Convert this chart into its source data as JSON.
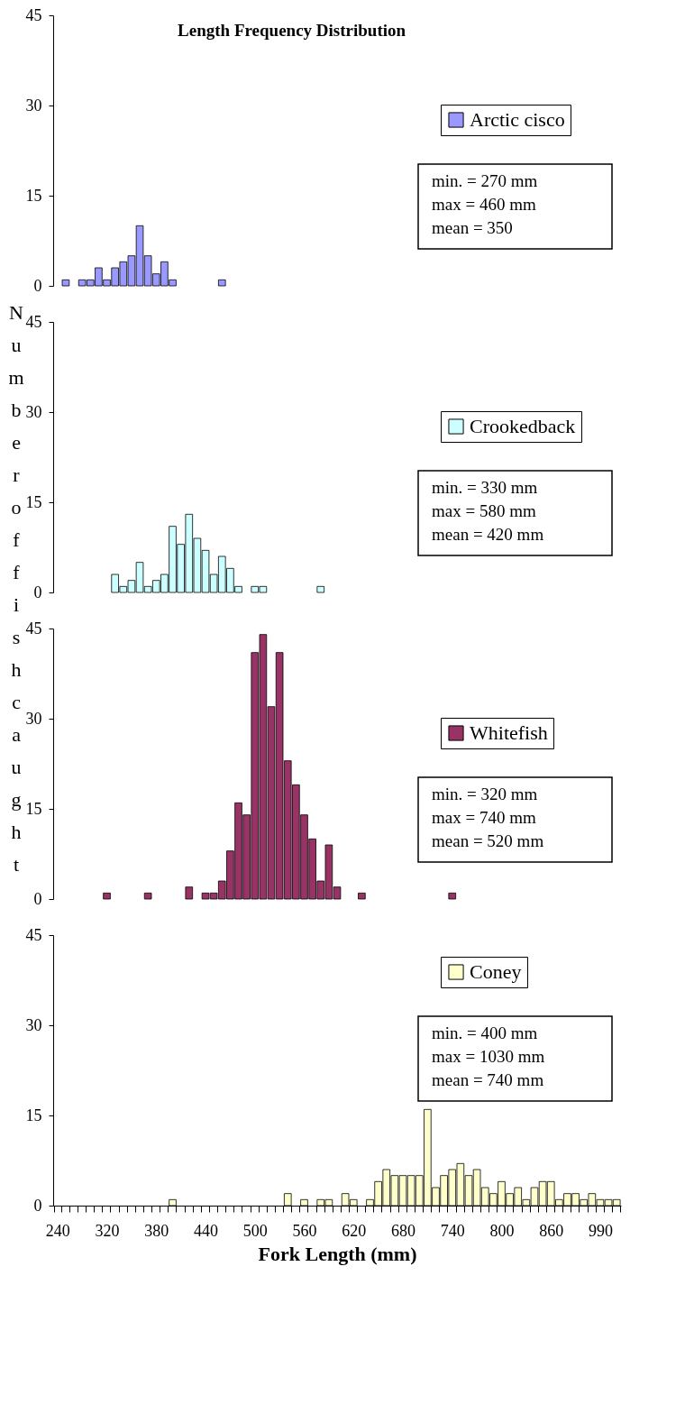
{
  "chart_data": [
    {
      "type": "bar",
      "title": "Length Frequency Distribution",
      "ylabel": "Number of fish caught",
      "categories": [
        "240",
        null,
        null,
        null,
        null,
        null,
        "320",
        null,
        null,
        null,
        null,
        null,
        "380",
        null,
        null,
        null,
        null,
        null,
        "440",
        null,
        null,
        null,
        null,
        null,
        "500",
        null,
        null,
        null,
        null,
        null,
        "560",
        null,
        null,
        null,
        null,
        null,
        "620",
        null,
        null,
        null,
        null,
        null,
        "680",
        null,
        null,
        null,
        null,
        null,
        "740",
        null,
        null,
        null,
        null,
        null,
        "800",
        null,
        null,
        null,
        null,
        null,
        "860",
        null,
        null,
        null,
        null,
        null,
        "990",
        null,
        null
      ],
      "series": [
        {
          "name": "Arctic cisco",
          "color": "#9999ff",
          "values": [
            null,
            1,
            null,
            1,
            1,
            3,
            1,
            3,
            4,
            5,
            10,
            5,
            2,
            4,
            1,
            null,
            null,
            null,
            null,
            null,
            1,
            null,
            null,
            null,
            null,
            null,
            null,
            null,
            null,
            null,
            null,
            null,
            null,
            null,
            null,
            null,
            null,
            null,
            null,
            null,
            null,
            null,
            null,
            null,
            null,
            null,
            null,
            null,
            null,
            null,
            null,
            null,
            null,
            null,
            null,
            null,
            null,
            null,
            null,
            null,
            null,
            null,
            null,
            null,
            null,
            null,
            null,
            null,
            null
          ]
        }
      ],
      "ylim": [
        0,
        45
      ],
      "yticks": [
        0,
        15,
        30,
        45
      ],
      "legend": "right",
      "tick_labels": "y",
      "annotations": [
        "min. = 270 mm",
        "max = 460 mm",
        "mean = 350"
      ]
    },
    {
      "type": "bar",
      "categories": [
        "240",
        null,
        null,
        null,
        null,
        null,
        "320",
        null,
        null,
        null,
        null,
        null,
        "380",
        null,
        null,
        null,
        null,
        null,
        "440",
        null,
        null,
        null,
        null,
        null,
        "500",
        null,
        null,
        null,
        null,
        null,
        "560",
        null,
        null,
        null,
        null,
        null,
        "620",
        null,
        null,
        null,
        null,
        null,
        "680",
        null,
        null,
        null,
        null,
        null,
        "740",
        null,
        null,
        null,
        null,
        null,
        "800",
        null,
        null,
        null,
        null,
        null,
        "860",
        null,
        null,
        null,
        null,
        null,
        "990",
        null,
        null
      ],
      "series": [
        {
          "name": "Crookedback",
          "color": "#ccffff",
          "values": [
            null,
            null,
            null,
            null,
            null,
            null,
            null,
            3,
            1,
            2,
            5,
            1,
            2,
            3,
            11,
            8,
            13,
            9,
            7,
            3,
            6,
            4,
            1,
            null,
            1,
            1,
            null,
            null,
            null,
            null,
            null,
            null,
            1,
            null,
            null,
            null,
            null,
            null,
            null,
            null,
            null,
            null,
            null,
            null,
            null,
            null,
            null,
            null,
            null,
            null,
            null,
            null,
            null,
            null,
            null,
            null,
            null,
            null,
            null,
            null,
            null,
            null,
            null,
            null,
            null,
            null,
            null,
            null,
            null
          ]
        }
      ],
      "ylim": [
        0,
        45
      ],
      "yticks": [
        0,
        15,
        30,
        45
      ],
      "legend": "right",
      "tick_labels": "y",
      "annotations": [
        "min. = 330 mm",
        "max = 580 mm",
        "mean = 420 mm"
      ]
    },
    {
      "type": "bar",
      "categories": [
        "240",
        null,
        null,
        null,
        null,
        null,
        "320",
        null,
        null,
        null,
        null,
        null,
        "380",
        null,
        null,
        null,
        null,
        null,
        "440",
        null,
        null,
        null,
        null,
        null,
        "500",
        null,
        null,
        null,
        null,
        null,
        "560",
        null,
        null,
        null,
        null,
        null,
        "620",
        null,
        null,
        null,
        null,
        null,
        "680",
        null,
        null,
        null,
        null,
        null,
        "740",
        null,
        null,
        null,
        null,
        null,
        "800",
        null,
        null,
        null,
        null,
        null,
        "860",
        null,
        null,
        null,
        null,
        null,
        "990",
        null,
        null
      ],
      "series": [
        {
          "name": "Whitefish",
          "color": "#993366",
          "values": [
            null,
            null,
            null,
            null,
            null,
            null,
            1,
            null,
            null,
            null,
            null,
            1,
            null,
            null,
            null,
            null,
            2,
            null,
            1,
            1,
            3,
            8,
            16,
            14,
            41,
            44,
            32,
            41,
            23,
            19,
            14,
            10,
            3,
            9,
            2,
            null,
            null,
            1,
            null,
            null,
            null,
            null,
            null,
            null,
            null,
            null,
            null,
            null,
            1,
            null,
            null,
            null,
            null,
            null,
            null,
            null,
            null,
            null,
            null,
            null,
            null,
            null,
            null,
            null,
            null,
            null,
            null,
            null,
            null
          ]
        }
      ],
      "ylim": [
        0,
        45
      ],
      "yticks": [
        0,
        15,
        30,
        45
      ],
      "legend": "right",
      "tick_labels": "y",
      "annotations": [
        "min. = 320 mm",
        "max = 740 mm",
        "mean = 520 mm"
      ]
    },
    {
      "type": "bar",
      "xlabel": "Fork Length (mm)",
      "categories": [
        "240",
        null,
        null,
        null,
        null,
        null,
        "320",
        null,
        null,
        null,
        null,
        null,
        "380",
        null,
        null,
        null,
        null,
        null,
        "440",
        null,
        null,
        null,
        null,
        null,
        "500",
        null,
        null,
        null,
        null,
        null,
        "560",
        null,
        null,
        null,
        null,
        null,
        "620",
        null,
        null,
        null,
        null,
        null,
        "680",
        null,
        null,
        null,
        null,
        null,
        "740",
        null,
        null,
        null,
        null,
        null,
        "800",
        null,
        null,
        null,
        null,
        null,
        "860",
        null,
        null,
        null,
        null,
        null,
        "990",
        null,
        null
      ],
      "series": [
        {
          "name": "Coney",
          "color": "#ffffcc",
          "values": [
            null,
            null,
            null,
            null,
            null,
            null,
            null,
            null,
            null,
            null,
            null,
            null,
            null,
            null,
            1,
            null,
            null,
            null,
            null,
            null,
            null,
            null,
            null,
            null,
            null,
            null,
            null,
            null,
            2,
            null,
            1,
            null,
            1,
            1,
            null,
            2,
            1,
            null,
            1,
            4,
            6,
            5,
            5,
            5,
            5,
            16,
            3,
            5,
            6,
            7,
            5,
            6,
            3,
            2,
            4,
            2,
            3,
            1,
            3,
            4,
            4,
            1,
            2,
            2,
            1,
            2,
            1,
            1,
            1
          ]
        }
      ],
      "ylim": [
        0,
        45
      ],
      "yticks": [
        0,
        15,
        30,
        45
      ],
      "legend": "top right",
      "annotations": [
        "min. = 400 mm",
        "max = 1030 mm",
        "mean = 740 mm"
      ]
    }
  ]
}
